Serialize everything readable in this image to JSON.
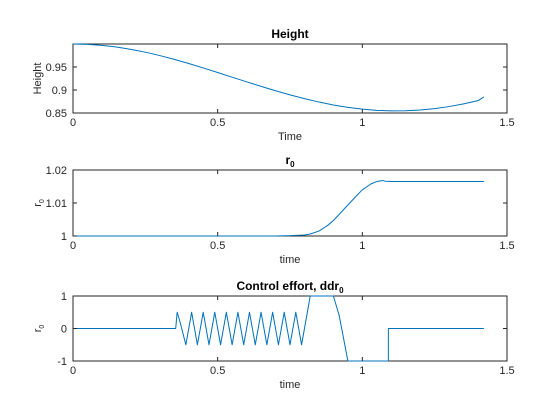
{
  "chart_data": [
    {
      "type": "line",
      "title": "Height",
      "title_sub": "",
      "xlabel": "Time",
      "ylabel": "Height",
      "ylabel_sub": "",
      "xlim": [
        0,
        1.5
      ],
      "ylim": [
        0.85,
        1.0
      ],
      "xticks": [
        0,
        0.5,
        1,
        1.5
      ],
      "xtick_labels": [
        "0",
        "0.5",
        "1",
        "1.5"
      ],
      "yticks": [
        0.85,
        0.9,
        0.95
      ],
      "ytick_labels": [
        "0.85",
        "0.9",
        "0.95"
      ],
      "grid": false,
      "series": [
        {
          "color": "#0072BD",
          "x": [
            0,
            0.05,
            0.1,
            0.15,
            0.2,
            0.25,
            0.3,
            0.35,
            0.4,
            0.45,
            0.5,
            0.55,
            0.6,
            0.65,
            0.7,
            0.75,
            0.8,
            0.85,
            0.9,
            0.95,
            1.0,
            1.05,
            1.1,
            1.15,
            1.2,
            1.25,
            1.3,
            1.35,
            1.4,
            1.42
          ],
          "y": [
            1.0,
            0.9993,
            0.997,
            0.9934,
            0.9884,
            0.9822,
            0.9749,
            0.9666,
            0.9576,
            0.948,
            0.938,
            0.9279,
            0.9178,
            0.9079,
            0.8984,
            0.8894,
            0.8812,
            0.8738,
            0.8675,
            0.8623,
            0.8584,
            0.8558,
            0.8546,
            0.8548,
            0.8565,
            0.8595,
            0.864,
            0.8698,
            0.8768,
            0.885
          ]
        }
      ]
    },
    {
      "type": "line",
      "title": "r",
      "title_sub": "0",
      "xlabel": "time",
      "ylabel": "r",
      "ylabel_sub": "0",
      "xlim": [
        0,
        1.5
      ],
      "ylim": [
        1.0,
        1.02
      ],
      "xticks": [
        0,
        0.5,
        1,
        1.5
      ],
      "xtick_labels": [
        "0",
        "0.5",
        "1",
        "1.5"
      ],
      "yticks": [
        1.0,
        1.01,
        1.02
      ],
      "ytick_labels": [
        "1",
        "1.01",
        "1.02"
      ],
      "grid": false,
      "series": [
        {
          "color": "#0072BD",
          "x": [
            0,
            0.2,
            0.4,
            0.6,
            0.7,
            0.75,
            0.8,
            0.82,
            0.85,
            0.88,
            0.9,
            0.93,
            0.95,
            0.98,
            1.0,
            1.03,
            1.05,
            1.07,
            1.08,
            1.1,
            1.2,
            1.3,
            1.42
          ],
          "y": [
            1.0,
            1.0,
            1.0,
            1.0,
            1.0,
            1.0001,
            1.0003,
            1.0006,
            1.0015,
            1.0032,
            1.0047,
            1.0075,
            1.0094,
            1.0122,
            1.014,
            1.0158,
            1.0165,
            1.0168,
            1.0166,
            1.0165,
            1.0165,
            1.0165,
            1.0165
          ]
        }
      ]
    },
    {
      "type": "line",
      "title": "Control effort, ddr",
      "title_sub": "0",
      "xlabel": "time",
      "ylabel": "r",
      "ylabel_sub": "0",
      "xlim": [
        0,
        1.5
      ],
      "ylim": [
        -1,
        1
      ],
      "xticks": [
        0,
        0.5,
        1,
        1.5
      ],
      "xtick_labels": [
        "0",
        "0.5",
        "1",
        "1.5"
      ],
      "yticks": [
        -1,
        0,
        1
      ],
      "ytick_labels": [
        "-1",
        "0",
        "1"
      ],
      "grid": false,
      "series": [
        {
          "color": "#0072BD",
          "x": [
            0,
            0.355,
            0.36,
            0.37,
            0.39,
            0.41,
            0.43,
            0.45,
            0.47,
            0.49,
            0.51,
            0.53,
            0.55,
            0.57,
            0.59,
            0.61,
            0.63,
            0.65,
            0.67,
            0.69,
            0.71,
            0.73,
            0.75,
            0.77,
            0.79,
            0.8,
            0.82,
            0.9,
            0.92,
            0.95,
            0.97,
            1.08,
            1.09,
            1.09,
            1.42
          ],
          "y": [
            0,
            0,
            0.5,
            0.2,
            -0.5,
            0.5,
            -0.5,
            0.5,
            -0.5,
            0.5,
            -0.5,
            0.5,
            -0.5,
            0.5,
            -0.5,
            0.5,
            -0.5,
            0.5,
            -0.5,
            0.5,
            -0.5,
            0.5,
            -0.5,
            0.5,
            -0.5,
            0.0,
            1.0,
            1.0,
            0.4,
            -1.0,
            -1.0,
            -1.0,
            -1.0,
            0.0,
            0.0
          ]
        }
      ]
    }
  ]
}
